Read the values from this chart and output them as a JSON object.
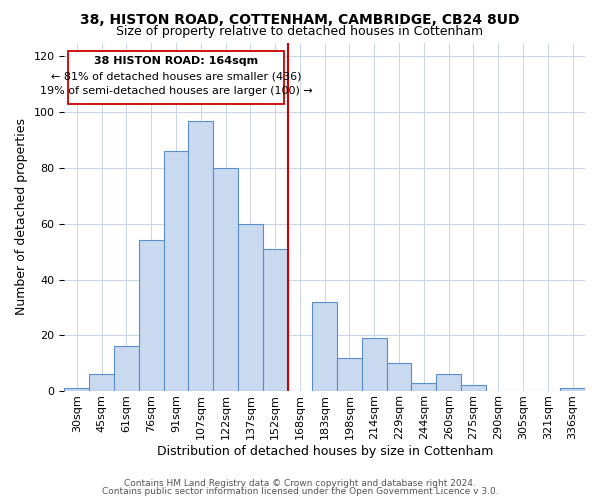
{
  "title1": "38, HISTON ROAD, COTTENHAM, CAMBRIDGE, CB24 8UD",
  "title2": "Size of property relative to detached houses in Cottenham",
  "xlabel": "Distribution of detached houses by size in Cottenham",
  "ylabel": "Number of detached properties",
  "footer1": "Contains HM Land Registry data © Crown copyright and database right 2024.",
  "footer2": "Contains public sector information licensed under the Open Government Licence v 3.0.",
  "bin_labels": [
    "30sqm",
    "45sqm",
    "61sqm",
    "76sqm",
    "91sqm",
    "107sqm",
    "122sqm",
    "137sqm",
    "152sqm",
    "168sqm",
    "183sqm",
    "198sqm",
    "214sqm",
    "229sqm",
    "244sqm",
    "260sqm",
    "275sqm",
    "290sqm",
    "305sqm",
    "321sqm",
    "336sqm"
  ],
  "bar_heights": [
    1,
    6,
    16,
    54,
    86,
    97,
    80,
    60,
    51,
    0,
    32,
    12,
    19,
    10,
    3,
    6,
    2,
    0,
    0,
    0,
    1
  ],
  "bar_color": "#c9d9f0",
  "bar_edge_color": "#5b8fc9",
  "vline_x_index": 9,
  "vline_color": "#cc0000",
  "annotation_line1": "38 HISTON ROAD: 164sqm",
  "annotation_line2": "← 81% of detached houses are smaller (436)",
  "annotation_line3": "19% of semi-detached houses are larger (100) →",
  "ylim": [
    0,
    125
  ],
  "yticks": [
    0,
    20,
    40,
    60,
    80,
    100,
    120
  ],
  "background_color": "#ffffff",
  "title_fontsize": 10,
  "subtitle_fontsize": 9,
  "ylabel_fontsize": 9,
  "xlabel_fontsize": 9,
  "tick_fontsize": 8,
  "footer_fontsize": 6.5,
  "annot_fontsize": 8
}
